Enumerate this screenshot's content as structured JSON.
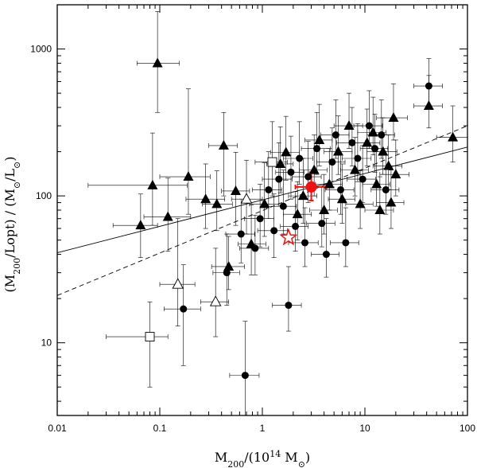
{
  "chart_data": {
    "type": "scatter",
    "title": "",
    "xlabel": "M200/(10^14 M⊙)",
    "ylabel": "(M200/Lopt) / (M⊙/L⊙)",
    "x_scale": "log",
    "y_scale": "log",
    "xlim": [
      0.01,
      100
    ],
    "ylim": [
      3.2,
      2000
    ],
    "x_ticks": [
      "0.01",
      "0.1",
      "1",
      "10",
      "100"
    ],
    "y_ticks": [
      "10",
      "100",
      "1000"
    ],
    "grid": false,
    "legend": "none",
    "colors": {
      "data": "#000000",
      "highlight": "#ee1111"
    },
    "series": [
      {
        "marker": "triangle-filled",
        "points": [
          {
            "x": 0.095,
            "y": 800,
            "xerr": [
              0.035,
              0.06
            ],
            "yerr": [
              430,
              1000
            ]
          },
          {
            "x": 0.065,
            "y": 63,
            "xerr": [
              0.03,
              0.03
            ],
            "yerr": [
              25,
              40
            ]
          },
          {
            "x": 0.085,
            "y": 118,
            "xerr": [
              0.065,
              0.1
            ],
            "yerr": [
              55,
              150
            ]
          },
          {
            "x": 0.12,
            "y": 72,
            "xerr": [
              0.05,
              0.08
            ],
            "yerr": [
              30,
              60
            ]
          },
          {
            "x": 0.19,
            "y": 135,
            "xerr": [
              0.09,
              0.12
            ],
            "yerr": [
              60,
              400
            ]
          },
          {
            "x": 0.28,
            "y": 95,
            "xerr": [
              0.1,
              0.15
            ],
            "yerr": [
              35,
              70
            ]
          },
          {
            "x": 0.36,
            "y": 88,
            "xerr": [
              0.1,
              0.15
            ],
            "yerr": [
              30,
              60
            ]
          },
          {
            "x": 0.42,
            "y": 220,
            "xerr": [
              0.12,
              0.15
            ],
            "yerr": [
              120,
              150
            ]
          },
          {
            "x": 0.47,
            "y": 33,
            "xerr": [
              0.15,
              0.2
            ],
            "yerr": [
              10,
              20
            ]
          },
          {
            "x": 0.55,
            "y": 108,
            "xerr": [
              0.15,
              0.2
            ],
            "yerr": [
              45,
              90
            ]
          },
          {
            "x": 0.78,
            "y": 47,
            "xerr": [
              0.2,
              0.3
            ],
            "yerr": [
              18,
              40
            ]
          },
          {
            "x": 1.05,
            "y": 88,
            "xerr": [
              0.3,
              0.4
            ],
            "yerr": [
              35,
              80
            ]
          },
          {
            "x": 1.5,
            "y": 165,
            "xerr": [
              0.4,
              0.5
            ],
            "yerr": [
              60,
              130
            ]
          },
          {
            "x": 1.7,
            "y": 198,
            "xerr": [
              0.5,
              0.6
            ],
            "yerr": [
              70,
              150
            ]
          },
          {
            "x": 2.2,
            "y": 75,
            "xerr": [
              0.6,
              0.8
            ],
            "yerr": [
              25,
              50
            ]
          },
          {
            "x": 2.5,
            "y": 100,
            "xerr": [
              0.7,
              0.9
            ],
            "yerr": [
              35,
              80
            ]
          },
          {
            "x": 3.2,
            "y": 150,
            "xerr": [
              0.9,
              1.1
            ],
            "yerr": [
              50,
              110
            ]
          },
          {
            "x": 3.6,
            "y": 240,
            "xerr": [
              1.0,
              1.2
            ],
            "yerr": [
              80,
              180
            ]
          },
          {
            "x": 4.0,
            "y": 80,
            "xerr": [
              1.1,
              1.4
            ],
            "yerr": [
              25,
              60
            ]
          },
          {
            "x": 4.5,
            "y": 120,
            "xerr": [
              1.2,
              1.5
            ],
            "yerr": [
              40,
              90
            ]
          },
          {
            "x": 5.5,
            "y": 200,
            "xerr": [
              1.5,
              2.0
            ],
            "yerr": [
              60,
              150
            ]
          },
          {
            "x": 6.0,
            "y": 95,
            "xerr": [
              1.6,
              2.0
            ],
            "yerr": [
              30,
              70
            ]
          },
          {
            "x": 7.0,
            "y": 300,
            "xerr": [
              2.0,
              2.5
            ],
            "yerr": [
              90,
              200
            ]
          },
          {
            "x": 8.0,
            "y": 150,
            "xerr": [
              2.2,
              2.8
            ],
            "yerr": [
              50,
              100
            ]
          },
          {
            "x": 9.0,
            "y": 88,
            "xerr": [
              2.5,
              3.0
            ],
            "yerr": [
              28,
              60
            ]
          },
          {
            "x": 10.5,
            "y": 230,
            "xerr": [
              3.0,
              3.5
            ],
            "yerr": [
              70,
              160
            ]
          },
          {
            "x": 12,
            "y": 270,
            "xerr": [
              3.5,
              4.0
            ],
            "yerr": [
              80,
              200
            ]
          },
          {
            "x": 13,
            "y": 120,
            "xerr": [
              3.5,
              4.5
            ],
            "yerr": [
              35,
              80
            ]
          },
          {
            "x": 14,
            "y": 80,
            "xerr": [
              4.0,
              5.0
            ],
            "yerr": [
              25,
              55
            ]
          },
          {
            "x": 15,
            "y": 200,
            "xerr": [
              4.5,
              5.5
            ],
            "yerr": [
              60,
              140
            ]
          },
          {
            "x": 17,
            "y": 160,
            "xerr": [
              5.0,
              6.0
            ],
            "yerr": [
              50,
              100
            ]
          },
          {
            "x": 18,
            "y": 90,
            "xerr": [
              5.0,
              6.0
            ],
            "yerr": [
              30,
              60
            ]
          },
          {
            "x": 19,
            "y": 340,
            "xerr": [
              6.0,
              7.0
            ],
            "yerr": [
              100,
              240
            ]
          },
          {
            "x": 20,
            "y": 140,
            "xerr": [
              6.0,
              7.0
            ],
            "yerr": [
              40,
              100
            ]
          },
          {
            "x": 42,
            "y": 410,
            "xerr": [
              12,
              15
            ],
            "yerr": [
              120,
              250
            ]
          },
          {
            "x": 72,
            "y": 250,
            "xerr": [
              22,
              30
            ],
            "yerr": [
              80,
              160
            ]
          }
        ]
      },
      {
        "marker": "circle-filled",
        "points": [
          {
            "x": 0.17,
            "y": 17,
            "xerr": [
              0.06,
              0.08
            ],
            "yerr": [
              10,
              17
            ]
          },
          {
            "x": 0.45,
            "y": 30,
            "xerr": [
              0.12,
              0.15
            ],
            "yerr": [
              12,
              25
            ]
          },
          {
            "x": 0.62,
            "y": 55,
            "xerr": [
              0.18,
              0.22
            ],
            "yerr": [
              20,
              40
            ]
          },
          {
            "x": 0.68,
            "y": 6,
            "xerr": [
              0.2,
              0.25
            ],
            "yerr": [
              3,
              8
            ]
          },
          {
            "x": 0.85,
            "y": 44,
            "xerr": [
              0.25,
              0.3
            ],
            "yerr": [
              15,
              30
            ]
          },
          {
            "x": 0.95,
            "y": 70,
            "xerr": [
              0.28,
              0.35
            ],
            "yerr": [
              25,
              50
            ]
          },
          {
            "x": 1.15,
            "y": 110,
            "xerr": [
              0.35,
              0.4
            ],
            "yerr": [
              40,
              90
            ]
          },
          {
            "x": 1.3,
            "y": 58,
            "xerr": [
              0.4,
              0.45
            ],
            "yerr": [
              20,
              45
            ]
          },
          {
            "x": 1.45,
            "y": 130,
            "xerr": [
              0.45,
              0.5
            ],
            "yerr": [
              45,
              100
            ]
          },
          {
            "x": 1.6,
            "y": 85,
            "xerr": [
              0.5,
              0.55
            ],
            "yerr": [
              30,
              65
            ]
          },
          {
            "x": 1.8,
            "y": 18,
            "xerr": [
              0.55,
              0.6
            ],
            "yerr": [
              6,
              15
            ]
          },
          {
            "x": 1.9,
            "y": 145,
            "xerr": [
              0.55,
              0.65
            ],
            "yerr": [
              50,
              110
            ]
          },
          {
            "x": 2.1,
            "y": 62,
            "xerr": [
              0.6,
              0.7
            ],
            "yerr": [
              20,
              45
            ]
          },
          {
            "x": 2.3,
            "y": 180,
            "xerr": [
              0.7,
              0.8
            ],
            "yerr": [
              60,
              140
            ]
          },
          {
            "x": 2.6,
            "y": 48,
            "xerr": [
              0.8,
              0.9
            ],
            "yerr": [
              15,
              35
            ]
          },
          {
            "x": 2.8,
            "y": 135,
            "xerr": [
              0.85,
              0.95
            ],
            "yerr": [
              45,
              100
            ]
          },
          {
            "x": 3.4,
            "y": 210,
            "xerr": [
              1.0,
              1.2
            ],
            "yerr": [
              70,
              160
            ]
          },
          {
            "x": 3.8,
            "y": 65,
            "xerr": [
              1.1,
              1.3
            ],
            "yerr": [
              20,
              50
            ]
          },
          {
            "x": 4.2,
            "y": 40,
            "xerr": [
              1.2,
              1.4
            ],
            "yerr": [
              12,
              30
            ]
          },
          {
            "x": 4.8,
            "y": 170,
            "xerr": [
              1.4,
              1.6
            ],
            "yerr": [
              55,
              120
            ]
          },
          {
            "x": 5.2,
            "y": 260,
            "xerr": [
              1.5,
              1.8
            ],
            "yerr": [
              80,
              190
            ]
          },
          {
            "x": 5.8,
            "y": 110,
            "xerr": [
              1.7,
              2.0
            ],
            "yerr": [
              35,
              80
            ]
          },
          {
            "x": 6.5,
            "y": 48,
            "xerr": [
              1.9,
              2.2
            ],
            "yerr": [
              15,
              35
            ]
          },
          {
            "x": 7.5,
            "y": 230,
            "xerr": [
              2.2,
              2.6
            ],
            "yerr": [
              70,
              170
            ]
          },
          {
            "x": 8.5,
            "y": 180,
            "xerr": [
              2.5,
              3.0
            ],
            "yerr": [
              55,
              130
            ]
          },
          {
            "x": 9.5,
            "y": 130,
            "xerr": [
              2.8,
              3.2
            ],
            "yerr": [
              40,
              90
            ]
          },
          {
            "x": 11,
            "y": 300,
            "xerr": [
              3.2,
              3.8
            ],
            "yerr": [
              90,
              220
            ]
          },
          {
            "x": 12.5,
            "y": 210,
            "xerr": [
              3.5,
              4.2
            ],
            "yerr": [
              65,
              150
            ]
          },
          {
            "x": 14.5,
            "y": 260,
            "xerr": [
              4.0,
              5.0
            ],
            "yerr": [
              80,
              190
            ]
          },
          {
            "x": 16,
            "y": 110,
            "xerr": [
              4.5,
              5.5
            ],
            "yerr": [
              35,
              80
            ]
          },
          {
            "x": 42,
            "y": 560,
            "xerr": [
              12,
              15
            ],
            "yerr": [
              150,
              300
            ]
          }
        ]
      },
      {
        "marker": "triangle-open",
        "points": [
          {
            "x": 0.15,
            "y": 25,
            "xerr": [
              0.05,
              0.07
            ],
            "yerr": [
              12,
              45
            ]
          },
          {
            "x": 0.35,
            "y": 19,
            "xerr": [
              0.1,
              0.12
            ],
            "yerr": [
              8,
              25
            ]
          },
          {
            "x": 0.7,
            "y": 95,
            "xerr": [
              0.2,
              0.3
            ],
            "yerr": [
              40,
              80
            ]
          }
        ]
      },
      {
        "marker": "square-open",
        "points": [
          {
            "x": 0.08,
            "y": 11,
            "xerr": [
              0.05,
              0.04
            ],
            "yerr": [
              6,
              8
            ]
          },
          {
            "x": 1.25,
            "y": 170,
            "xerr": [
              0.4,
              0.5
            ],
            "yerr": [
              70,
              150
            ]
          }
        ]
      },
      {
        "marker": "circle-highlight",
        "points": [
          {
            "x": 3.0,
            "y": 115,
            "xerr": [
              0.9,
              1.2
            ],
            "yerr": [
              22,
              30
            ]
          }
        ]
      },
      {
        "marker": "star-open-highlight",
        "points": [
          {
            "x": 1.8,
            "y": 52
          }
        ]
      }
    ],
    "lines": [
      {
        "style": "solid",
        "from": [
          0.01,
          41
        ],
        "to": [
          100,
          215
        ]
      },
      {
        "style": "dashed",
        "from": [
          0.01,
          21
        ],
        "to": [
          100,
          300
        ]
      }
    ]
  }
}
